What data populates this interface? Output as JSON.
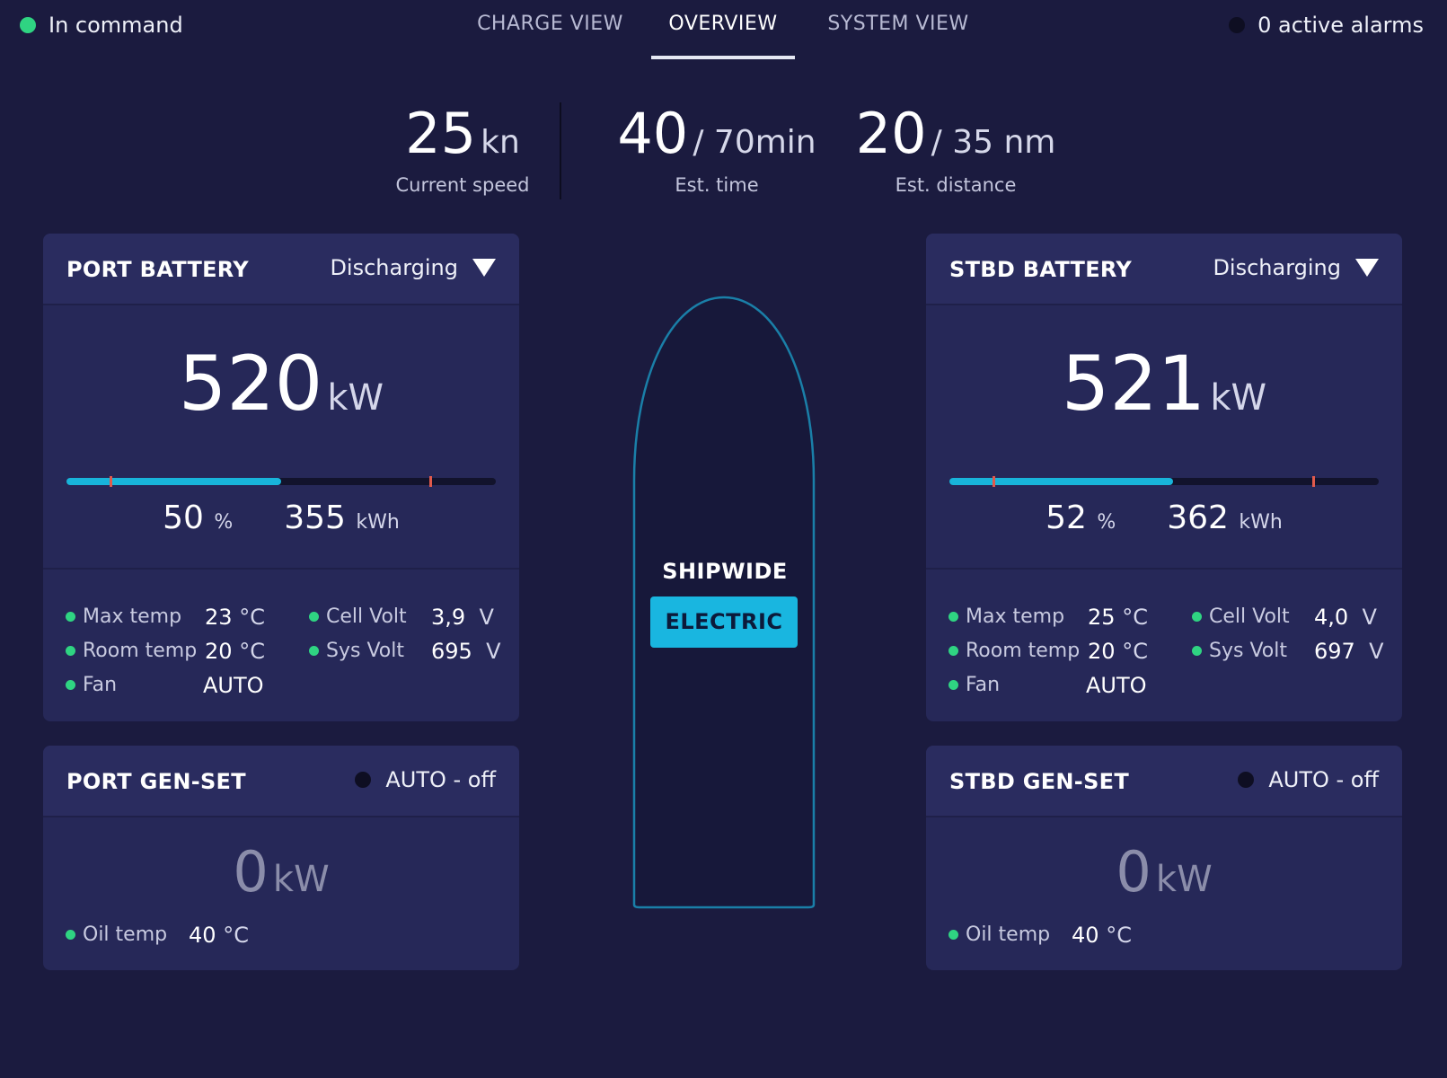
{
  "header": {
    "status_label": "In command",
    "tabs": [
      "CHARGE VIEW",
      "OVERVIEW",
      "SYSTEM VIEW"
    ],
    "active_tab": "OVERVIEW",
    "alarms_label": "0 active alarms"
  },
  "metrics": {
    "speed": {
      "value": "25",
      "unit": "kn",
      "caption": "Current speed"
    },
    "time": {
      "value": "40",
      "unit": "/ 70min",
      "caption": "Est. time"
    },
    "distance": {
      "value": "20",
      "unit": "/ 35 nm",
      "caption": "Est. distance"
    }
  },
  "port_battery": {
    "title": "PORT BATTERY",
    "status": "Discharging",
    "power_value": "520",
    "power_unit": "kW",
    "charge_fraction": 0.5,
    "soc_value": "50",
    "soc_unit": "%",
    "energy_value": "355",
    "energy_unit": "kWh",
    "max_temp_label": "Max temp",
    "max_temp_value": "23",
    "max_temp_unit": "°C",
    "room_temp_label": "Room temp",
    "room_temp_value": "20",
    "room_temp_unit": "°C",
    "fan_label": "Fan",
    "fan_value": "AUTO",
    "cell_volt_label": "Cell Volt",
    "cell_volt_value": "3,9",
    "cell_volt_unit": "V",
    "sys_volt_label": "Sys Volt",
    "sys_volt_value": "695",
    "sys_volt_unit": "V"
  },
  "stbd_battery": {
    "title": "STBD BATTERY",
    "status": "Discharging",
    "power_value": "521",
    "power_unit": "kW",
    "charge_fraction": 0.52,
    "soc_value": "52",
    "soc_unit": "%",
    "energy_value": "362",
    "energy_unit": "kWh",
    "max_temp_label": "Max temp",
    "max_temp_value": "25",
    "max_temp_unit": "°C",
    "room_temp_label": "Room temp",
    "room_temp_value": "20",
    "room_temp_unit": "°C",
    "fan_label": "Fan",
    "fan_value": "AUTO",
    "cell_volt_label": "Cell Volt",
    "cell_volt_value": "4,0",
    "cell_volt_unit": "V",
    "sys_volt_label": "Sys Volt",
    "sys_volt_value": "697",
    "sys_volt_unit": "V"
  },
  "port_genset": {
    "title": "PORT GEN-SET",
    "status": "AUTO - off",
    "power_value": "0",
    "power_unit": "kW",
    "oil_temp_label": "Oil temp",
    "oil_temp_value": "40",
    "oil_temp_unit": "°C"
  },
  "stbd_genset": {
    "title": "STBD GEN-SET",
    "status": "AUTO - off",
    "power_value": "0",
    "power_unit": "kW",
    "oil_temp_label": "Oil temp",
    "oil_temp_value": "40",
    "oil_temp_unit": "°C"
  },
  "ship": {
    "label": "SHIPWIDE",
    "mode_button": "ELECTRIC"
  },
  "colors": {
    "background": "#1b1b3f",
    "card": "#262858",
    "accent": "#19b6e0",
    "ok": "#2fd482",
    "marker": "#e05a4c"
  }
}
